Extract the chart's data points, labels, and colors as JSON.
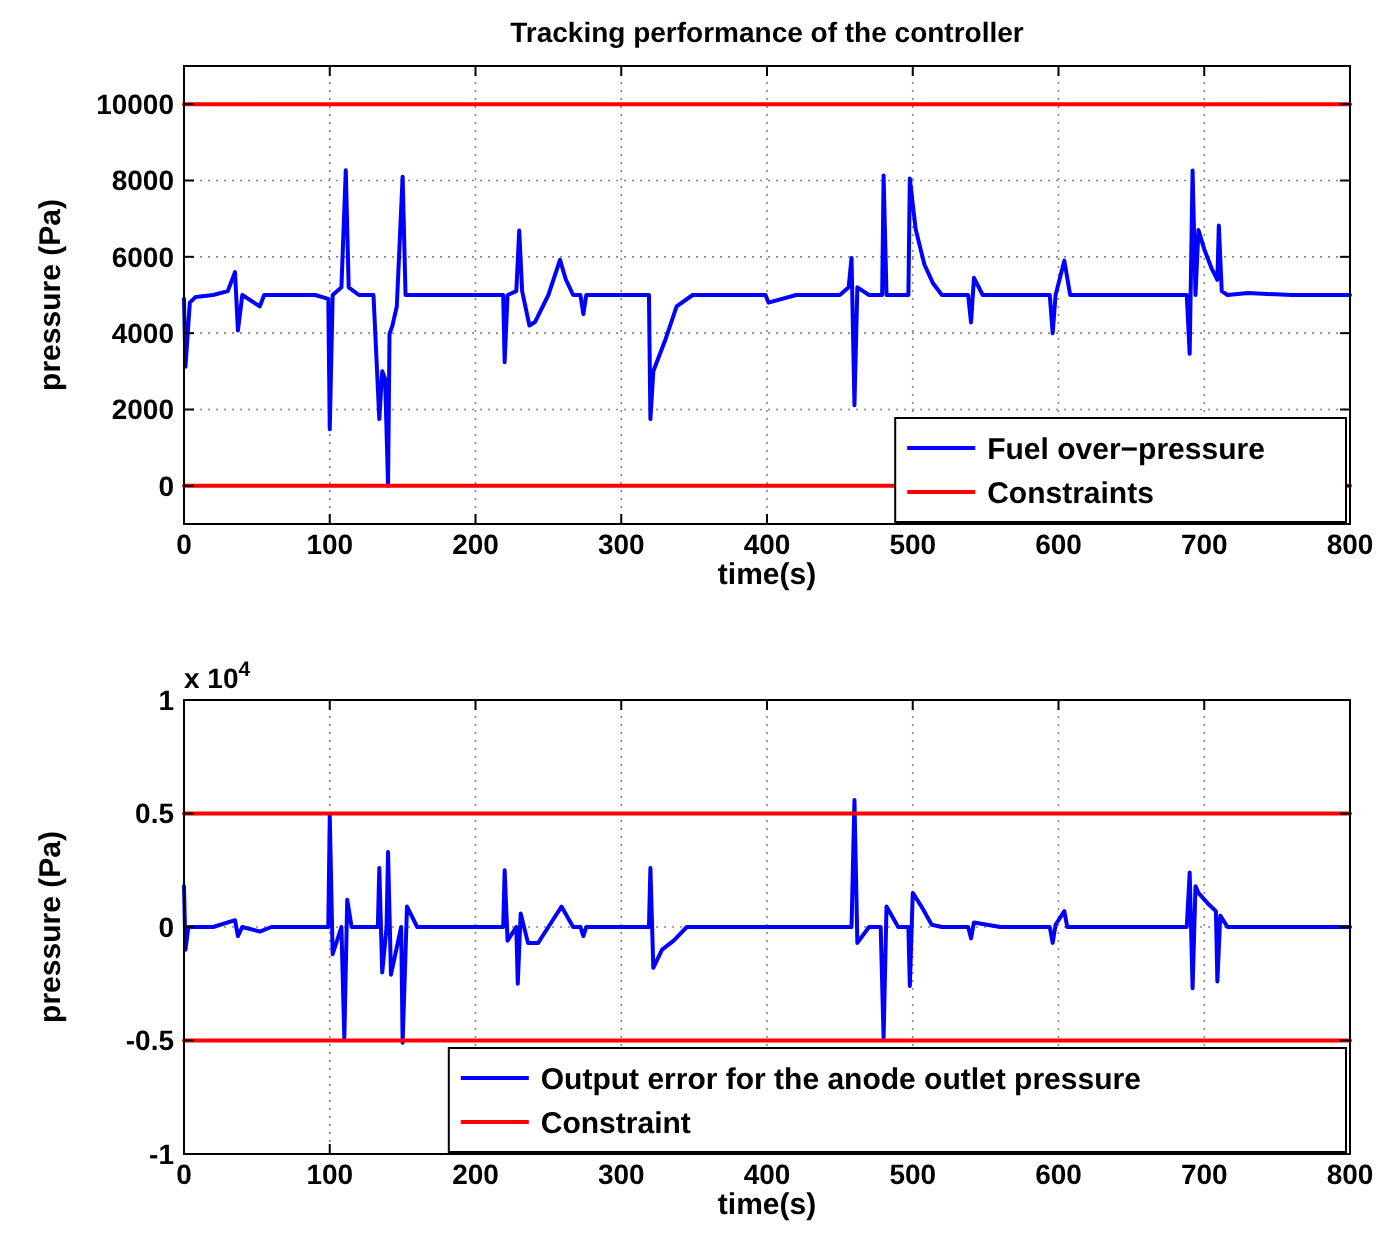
{
  "chart_data": [
    {
      "type": "line",
      "title": "Tracking performance of the controller",
      "xlabel": "time(s)",
      "ylabel": "pressure (Pa)",
      "xlim": [
        0,
        800
      ],
      "xticks": [
        0,
        100,
        200,
        300,
        400,
        500,
        600,
        700,
        800
      ],
      "ylim": [
        -1000,
        11000
      ],
      "yticks": [
        0,
        2000,
        4000,
        6000,
        8000,
        10000
      ],
      "grid": true,
      "legend": "bottom right",
      "line_style": "solid",
      "marker": "none",
      "series": [
        {
          "name": "Fuel over−pressure",
          "color": "#0000ff",
          "x": [
            0,
            1,
            4,
            8,
            20,
            30,
            35,
            37,
            40,
            52,
            55,
            70,
            90,
            99,
            100,
            102,
            108,
            111,
            113,
            120,
            130,
            134,
            136,
            138,
            140,
            141,
            143,
            146,
            150,
            152,
            155,
            170,
            200,
            219,
            220,
            222,
            228,
            230,
            232,
            237,
            241,
            250,
            258,
            262,
            267,
            272,
            274,
            276,
            290,
            310,
            319,
            320,
            322,
            330,
            338,
            349,
            370,
            399,
            401,
            420,
            450,
            456,
            458,
            460,
            462,
            470,
            479,
            480,
            482,
            490,
            497,
            498,
            502,
            508,
            514,
            520,
            530,
            538,
            540,
            542,
            548,
            560,
            580,
            594,
            596,
            598,
            604,
            608,
            620,
            660,
            688,
            690,
            692,
            694,
            696,
            700,
            705,
            709,
            710,
            712,
            716,
            730,
            760,
            800
          ],
          "values": [
            4900,
            3120,
            4800,
            4950,
            5000,
            5100,
            5600,
            4070,
            5000,
            4700,
            5000,
            5000,
            5000,
            4900,
            1480,
            5000,
            5200,
            8270,
            5200,
            5000,
            5000,
            1750,
            3000,
            2800,
            0,
            3980,
            4200,
            4700,
            8100,
            5000,
            5000,
            5000,
            5000,
            5000,
            3240,
            5000,
            5100,
            6690,
            5100,
            4200,
            4300,
            5000,
            5920,
            5400,
            5000,
            5000,
            4500,
            5000,
            5000,
            5000,
            5000,
            1750,
            3000,
            3800,
            4700,
            5000,
            5000,
            5000,
            4800,
            5000,
            5000,
            5200,
            5970,
            2110,
            5200,
            5000,
            5000,
            8130,
            5000,
            5000,
            5000,
            8050,
            6720,
            5800,
            5300,
            5000,
            5000,
            5000,
            4280,
            5450,
            5000,
            5000,
            5000,
            5000,
            4000,
            5000,
            5900,
            5000,
            5000,
            5000,
            5000,
            3460,
            8260,
            5000,
            6700,
            6200,
            5700,
            5400,
            6820,
            5100,
            5000,
            5050,
            5000,
            5000
          ]
        },
        {
          "name": "Constraints",
          "color": "#ff0000",
          "x": [
            0,
            800
          ],
          "values": [
            10000,
            10000
          ]
        },
        {
          "color": "#ff0000",
          "x": [
            0,
            800
          ],
          "values": [
            0,
            0
          ]
        }
      ]
    },
    {
      "type": "line",
      "xlabel": "time(s)",
      "ylabel": "pressure (Pa)",
      "annotations": [
        "x 10$^{4}$"
      ],
      "xlim": [
        0,
        800
      ],
      "xticks": [
        0,
        100,
        200,
        300,
        400,
        500,
        600,
        700,
        800
      ],
      "ylim": [
        -1,
        1
      ],
      "yticks": [
        -1,
        -0.5,
        0,
        0.5,
        1
      ],
      "grid": true,
      "legend": "bottom right",
      "line_style": "solid",
      "marker": "none",
      "series": [
        {
          "name": "Output error for the anode outlet pressure",
          "color": "#0000ff",
          "x": [
            0,
            1,
            3,
            8,
            20,
            35,
            37,
            40,
            52,
            60,
            99,
            100,
            102,
            108,
            110,
            112,
            115,
            120,
            133,
            134,
            136,
            139,
            140,
            142,
            149,
            150,
            153,
            160,
            200,
            219,
            220,
            222,
            228,
            229,
            231,
            236,
            243,
            250,
            259,
            267,
            272,
            274,
            276,
            300,
            319,
            320,
            322,
            328,
            336,
            345,
            370,
            420,
            458,
            460,
            462,
            470,
            478,
            480,
            482,
            490,
            497,
            498,
            500,
            506,
            513,
            520,
            538,
            540,
            542,
            560,
            594,
            596,
            598,
            604,
            606,
            640,
            688,
            690,
            692,
            694,
            696,
            703,
            708,
            709,
            711,
            716,
            740,
            800
          ],
          "values": [
            0.18,
            -0.1,
            0,
            0,
            0,
            0.03,
            -0.04,
            0,
            -0.02,
            0,
            0,
            0.49,
            -0.12,
            0,
            -0.49,
            0.12,
            0,
            0,
            0,
            0.26,
            -0.2,
            0,
            0.33,
            -0.21,
            0,
            -0.51,
            0.09,
            0,
            0,
            0,
            0.25,
            -0.06,
            0,
            -0.25,
            0.06,
            -0.07,
            -0.07,
            0,
            0.09,
            0,
            0,
            -0.04,
            0,
            0,
            0,
            0.26,
            -0.18,
            -0.1,
            -0.06,
            0,
            0,
            0,
            0,
            0.56,
            -0.07,
            0,
            0,
            -0.49,
            0.09,
            0,
            0,
            -0.26,
            0.15,
            0.09,
            0.01,
            0,
            0,
            -0.05,
            0.02,
            0,
            0,
            -0.07,
            0.01,
            0.07,
            0,
            0,
            0,
            0.24,
            -0.27,
            0.18,
            0.15,
            0.1,
            0.07,
            -0.24,
            0.05,
            0,
            0,
            0
          ]
        },
        {
          "name": "Constraint",
          "color": "#ff0000",
          "x": [
            0,
            800
          ],
          "values": [
            0.5,
            0.5
          ]
        },
        {
          "color": "#ff0000",
          "x": [
            0,
            800
          ],
          "values": [
            -0.5,
            -0.5
          ]
        }
      ]
    }
  ]
}
